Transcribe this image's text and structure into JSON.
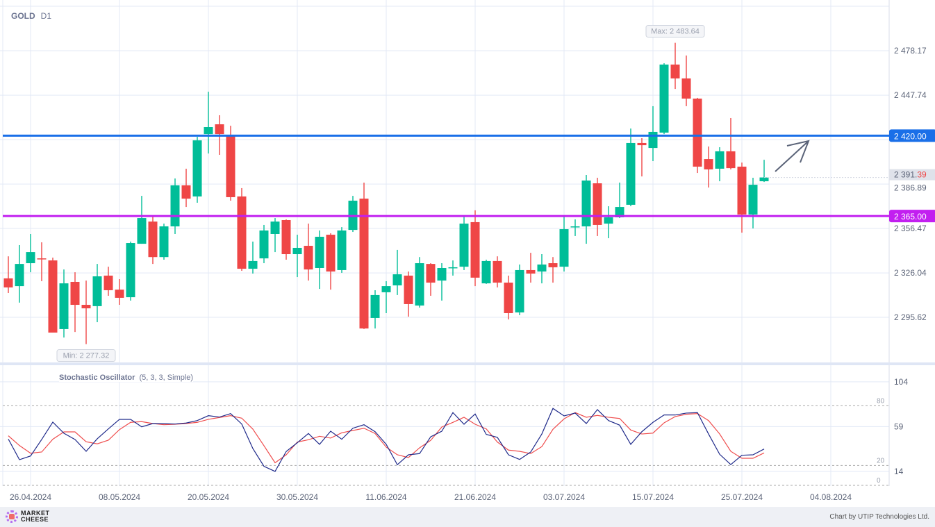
{
  "header": {
    "symbol": "GOLD",
    "timeframe": "D1"
  },
  "indicator": {
    "name": "Stochastic Oscillator",
    "params": "(5, 3, 3, Simple)"
  },
  "footer": {
    "logo": "MARKET CHEESE",
    "credit": "Chart by UTIP Technologies Ltd."
  },
  "colors": {
    "up": "#00bd98",
    "down": "#ef4646",
    "support": "#c21ff0",
    "resistance": "#1a6fe8",
    "k": "#1f2a8a",
    "d": "#ef4e4e",
    "grid": "#e3e9f6"
  },
  "chart_data": {
    "type": "candlestick",
    "title": "GOLD D1",
    "ylim": [
      2265.7,
      2512.9
    ],
    "y_ticks": [
      "2 478.17",
      "2 447.74",
      "2 386.89",
      "2 356.47",
      "2 326.04",
      "2 295.62"
    ],
    "y_tick_values": [
      2478.17,
      2447.74,
      2386.89,
      2356.47,
      2326.04,
      2295.62
    ],
    "x_labels": [
      {
        "i": 2,
        "label": "26.04.2024"
      },
      {
        "i": 10,
        "label": "08.05.2024"
      },
      {
        "i": 18,
        "label": "20.05.2024"
      },
      {
        "i": 26,
        "label": "30.05.2024"
      },
      {
        "i": 34,
        "label": "11.06.2024"
      },
      {
        "i": 42,
        "label": "21.06.2024"
      },
      {
        "i": 50,
        "label": "03.07.2024"
      },
      {
        "i": 58,
        "label": "15.07.2024"
      },
      {
        "i": 66,
        "label": "25.07.2024"
      },
      {
        "i": 74,
        "label": "04.08.2024"
      }
    ],
    "ohlc": [
      [
        2322.3,
        2337.4,
        2312.3,
        2316.1
      ],
      [
        2317.0,
        2345.1,
        2305.7,
        2332.2
      ],
      [
        2332.7,
        2352.7,
        2326.5,
        2340.3
      ],
      [
        2336.0,
        2347.0,
        2320.4,
        2335.6
      ],
      [
        2334.6,
        2336.5,
        2285.2,
        2285.2
      ],
      [
        2287.6,
        2328.4,
        2281.8,
        2318.9
      ],
      [
        2319.9,
        2326.5,
        2285.6,
        2304.2
      ],
      [
        2304.2,
        2320.8,
        2277.3,
        2301.8
      ],
      [
        2303.3,
        2332.2,
        2292.3,
        2323.7
      ],
      [
        2324.2,
        2330.3,
        2310.4,
        2314.2
      ],
      [
        2314.6,
        2321.8,
        2304.2,
        2309.0
      ],
      [
        2309.4,
        2347.5,
        2307.1,
        2346.5
      ],
      [
        2346.0,
        2378.8,
        2346.0,
        2363.6
      ],
      [
        2361.2,
        2364.6,
        2332.2,
        2336.9
      ],
      [
        2336.9,
        2359.8,
        2335.1,
        2357.9
      ],
      [
        2357.9,
        2390.7,
        2352.7,
        2386.0
      ],
      [
        2386.0,
        2397.4,
        2371.2,
        2376.9
      ],
      [
        2378.4,
        2419.2,
        2374.1,
        2416.8
      ],
      [
        2421.1,
        2450.1,
        2407.8,
        2425.9
      ],
      [
        2427.8,
        2434.0,
        2406.9,
        2421.1
      ],
      [
        2420.2,
        2426.8,
        2375.5,
        2377.9
      ],
      [
        2378.4,
        2384.1,
        2327.5,
        2328.9
      ],
      [
        2328.9,
        2347.5,
        2325.6,
        2334.2
      ],
      [
        2336.0,
        2358.9,
        2332.7,
        2355.1
      ],
      [
        2352.7,
        2363.6,
        2340.3,
        2361.2
      ],
      [
        2362.2,
        2362.7,
        2335.1,
        2338.9
      ],
      [
        2338.9,
        2352.2,
        2323.2,
        2343.2
      ],
      [
        2344.6,
        2359.8,
        2320.8,
        2328.4
      ],
      [
        2329.4,
        2355.1,
        2315.1,
        2350.8
      ],
      [
        2352.2,
        2353.2,
        2314.6,
        2327.0
      ],
      [
        2328.0,
        2357.4,
        2326.1,
        2355.1
      ],
      [
        2355.5,
        2378.8,
        2354.1,
        2375.5
      ],
      [
        2376.9,
        2387.9,
        2287.6,
        2288.0
      ],
      [
        2295.2,
        2314.2,
        2288.0,
        2310.9
      ],
      [
        2312.8,
        2320.4,
        2298.5,
        2317.0
      ],
      [
        2317.5,
        2341.8,
        2310.9,
        2325.1
      ],
      [
        2324.2,
        2327.0,
        2296.1,
        2304.7
      ],
      [
        2303.7,
        2336.9,
        2302.3,
        2332.7
      ],
      [
        2332.2,
        2332.7,
        2310.4,
        2319.4
      ],
      [
        2320.8,
        2332.7,
        2307.1,
        2329.4
      ],
      [
        2329.9,
        2334.6,
        2324.2,
        2329.9
      ],
      [
        2330.3,
        2364.6,
        2328.0,
        2359.8
      ],
      [
        2360.8,
        2368.9,
        2317.0,
        2322.8
      ],
      [
        2318.9,
        2335.1,
        2318.5,
        2334.2
      ],
      [
        2334.2,
        2337.4,
        2316.1,
        2319.4
      ],
      [
        2319.4,
        2324.2,
        2294.2,
        2298.5
      ],
      [
        2299.0,
        2331.8,
        2297.1,
        2328.0
      ],
      [
        2328.0,
        2339.8,
        2319.4,
        2325.6
      ],
      [
        2327.0,
        2338.9,
        2318.9,
        2331.8
      ],
      [
        2332.7,
        2336.9,
        2319.4,
        2329.9
      ],
      [
        2330.3,
        2364.6,
        2327.0,
        2356.0
      ],
      [
        2357.9,
        2362.7,
        2351.3,
        2357.9
      ],
      [
        2357.9,
        2393.1,
        2346.0,
        2389.3
      ],
      [
        2387.4,
        2391.2,
        2351.3,
        2358.9
      ],
      [
        2359.8,
        2371.7,
        2349.8,
        2364.1
      ],
      [
        2364.1,
        2387.9,
        2363.6,
        2371.2
      ],
      [
        2372.7,
        2424.9,
        2371.7,
        2415.0
      ],
      [
        2415.0,
        2418.3,
        2392.1,
        2413.5
      ],
      [
        2411.6,
        2440.2,
        2402.6,
        2422.6
      ],
      [
        2422.1,
        2469.6,
        2421.1,
        2468.7
      ],
      [
        2468.7,
        2483.6,
        2452.0,
        2459.2
      ],
      [
        2459.2,
        2474.9,
        2440.2,
        2445.4
      ],
      [
        2445.4,
        2445.9,
        2394.5,
        2398.8
      ],
      [
        2404.0,
        2412.6,
        2384.5,
        2396.9
      ],
      [
        2397.4,
        2412.1,
        2388.8,
        2409.3
      ],
      [
        2409.3,
        2432.1,
        2396.9,
        2397.8
      ],
      [
        2398.8,
        2401.6,
        2353.6,
        2366.0
      ],
      [
        2366.0,
        2391.2,
        2356.5,
        2386.4
      ],
      [
        2388.8,
        2403.5,
        2388.3,
        2391.4
      ]
    ],
    "levels": [
      {
        "name": "resistance",
        "value": 2420.0,
        "label": "2 420.00"
      },
      {
        "name": "support",
        "value": 2365.0,
        "label": "2 365.00"
      }
    ],
    "last_price": {
      "value": 2391.39,
      "main": "2 391.",
      "tail": "39"
    },
    "max": {
      "value": 2483.64,
      "label": "Max: 2 483.64",
      "i": 60
    },
    "min": {
      "value": 2277.32,
      "label": "Min: 2 277.32",
      "i": 7
    },
    "stochastic": {
      "ylim": [
        0,
        119.3
      ],
      "ticks": [
        {
          "v": 104,
          "label": "104"
        },
        {
          "v": 59,
          "label": "59"
        },
        {
          "v": 14,
          "label": "14"
        }
      ],
      "levels": [
        {
          "v": 80,
          "label": "80"
        },
        {
          "v": 20,
          "label": "20"
        },
        {
          "v": 0,
          "label": "0"
        }
      ],
      "k": [
        46.5,
        25.8,
        29.5,
        46.1,
        63.5,
        52.3,
        46.1,
        34.2,
        46.8,
        56.7,
        66.3,
        66.3,
        58.8,
        62.1,
        61.9,
        61.6,
        62.6,
        65.1,
        70.0,
        68.6,
        72.1,
        61.6,
        37.0,
        19.1,
        14.0,
        34.0,
        42.8,
        52.1,
        41.2,
        54.4,
        46.3,
        57.4,
        60.9,
        53.9,
        41.2,
        20.7,
        30.7,
        31.9,
        48.8,
        54.4,
        73.1,
        61.4,
        71.7,
        51.2,
        48.2,
        30.7,
        26.0,
        33.5,
        51.6,
        77.3,
        69.8,
        72.6,
        62.1,
        76.1,
        65.1,
        60.5,
        41.2,
        53.9,
        63.3,
        70.7,
        70.7,
        72.6,
        73.1,
        51.6,
        31.2,
        20.9,
        30.2,
        30.7,
        36.5
      ],
      "d": [
        49.8,
        40.0,
        32.3,
        33.5,
        46.3,
        53.7,
        53.7,
        43.8,
        41.7,
        45.4,
        56.0,
        63.3,
        64.0,
        62.1,
        60.9,
        61.4,
        62.1,
        63.3,
        66.3,
        68.2,
        70.0,
        67.5,
        56.5,
        39.8,
        22.7,
        30.7,
        43.5,
        45.8,
        49.3,
        47.5,
        52.8,
        55.1,
        57.4,
        52.1,
        38.4,
        30.7,
        27.9,
        37.7,
        45.2,
        58.6,
        63.3,
        68.4,
        61.4,
        56.7,
        43.5,
        35.4,
        34.2,
        31.9,
        38.9,
        56.3,
        66.8,
        73.1,
        68.4,
        70.3,
        68.4,
        67.2,
        55.6,
        51.6,
        52.5,
        62.8,
        69.1,
        71.4,
        72.1,
        65.1,
        51.6,
        34.2,
        27.2,
        27.2,
        32.6
      ]
    }
  }
}
